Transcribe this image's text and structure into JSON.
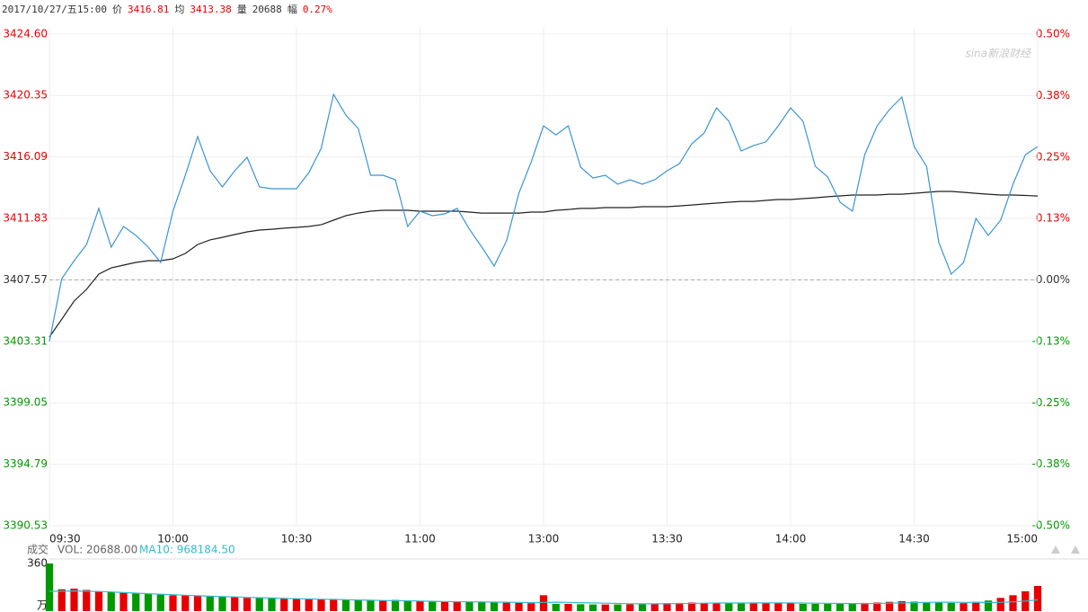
{
  "chart_data": [
    {
      "type": "line",
      "info": {
        "time": "2017/10/27/五15:00",
        "price": "3416.81",
        "avg": "3413.38",
        "vol_label": "量",
        "vol": "20688",
        "chg_label": "幅",
        "chg": "0.27%"
      },
      "watermark": "sina新浪财经",
      "x": [
        0,
        3,
        6,
        9,
        12,
        15,
        18,
        21,
        24,
        27,
        30,
        33,
        36,
        39,
        42,
        45,
        48,
        51,
        54,
        57,
        60,
        63,
        66,
        69,
        72,
        75,
        78,
        81,
        84,
        87,
        90,
        93,
        96,
        99,
        102,
        105,
        108,
        111,
        114,
        117,
        120,
        123,
        126,
        129,
        132,
        135,
        138,
        141,
        144,
        147,
        150,
        153,
        156,
        159,
        162,
        165,
        168,
        171,
        174,
        177,
        180,
        183,
        186,
        189,
        192,
        195,
        198,
        201,
        204,
        207,
        210,
        213,
        216,
        219,
        222,
        225,
        228,
        231,
        234,
        237,
        240
      ],
      "xlim": [
        0,
        240
      ],
      "xticks": [
        {
          "value": 0,
          "label": "09:30"
        },
        {
          "value": 30,
          "label": "10:00"
        },
        {
          "value": 60,
          "label": "10:30"
        },
        {
          "value": 90,
          "label": "11:00"
        },
        {
          "value": 120,
          "label": "13:00"
        },
        {
          "value": 150,
          "label": "13:30"
        },
        {
          "value": 180,
          "label": "14:00"
        },
        {
          "value": 210,
          "label": "14:30"
        },
        {
          "value": 240,
          "label": "15:00"
        }
      ],
      "ylim": [
        3390.53,
        3424.6
      ],
      "yticks": [
        {
          "value": 3424.6,
          "label": "3424.60"
        },
        3420.35,
        3416.09,
        3411.83,
        3407.57,
        3403.31,
        3399.05,
        3394.79,
        3390.53
      ],
      "y2lim": [
        -0.5,
        0.5
      ],
      "y2ticks": [
        {
          "value": 0.5,
          "label": "0.50%"
        },
        {
          "value": 0.375,
          "label": "0.38%"
        },
        {
          "value": 0.25,
          "label": "0.25%"
        },
        {
          "value": 0.125,
          "label": "0.13%"
        },
        {
          "value": 0,
          "label": "0.00%"
        },
        {
          "value": -0.125,
          "label": "-0.13%"
        },
        {
          "value": -0.25,
          "label": "-0.25%"
        },
        {
          "value": -0.375,
          "label": "-0.38%"
        },
        {
          "value": -0.5,
          "label": "-0.50%"
        }
      ],
      "ref_line": 3407.57,
      "grid": true,
      "up_color": "#e60000",
      "down_color": "#009900",
      "flat_color": "#333333",
      "series": [
        {
          "name": "价",
          "color": "#3b95d3",
          "values": [
            3403.3,
            3407.66,
            3408.9,
            3410.02,
            3412.52,
            3409.84,
            3411.27,
            3410.65,
            3409.84,
            3408.78,
            3412.33,
            3414.82,
            3417.5,
            3415.13,
            3414.01,
            3415.13,
            3416.07,
            3414.01,
            3413.89,
            3413.89,
            3413.89,
            3415.01,
            3416.69,
            3420.43,
            3418.99,
            3418.06,
            3414.82,
            3414.82,
            3414.51,
            3411.27,
            3412.33,
            3412.02,
            3412.14,
            3412.52,
            3411.08,
            3409.84,
            3408.53,
            3410.27,
            3413.57,
            3415.75,
            3418.25,
            3417.62,
            3418.25,
            3415.38,
            3414.63,
            3414.82,
            3414.2,
            3414.51,
            3414.2,
            3414.51,
            3415.13,
            3415.63,
            3417.0,
            3417.75,
            3419.49,
            3418.56,
            3416.5,
            3416.88,
            3417.13,
            3418.25,
            3419.49,
            3418.56,
            3415.44,
            3414.7,
            3412.95,
            3412.33,
            3416.25,
            3418.25,
            3419.37,
            3420.24,
            3416.81,
            3415.44,
            3410.15,
            3407.97,
            3408.78,
            3411.83,
            3410.65,
            3411.71,
            3414.2,
            3416.25,
            3416.81
          ]
        },
        {
          "name": "均",
          "color": "#222222",
          "values": [
            3403.61,
            3404.85,
            3406.1,
            3406.91,
            3407.97,
            3408.4,
            3408.59,
            3408.78,
            3408.9,
            3408.9,
            3409.03,
            3409.4,
            3410.02,
            3410.34,
            3410.52,
            3410.71,
            3410.9,
            3411.02,
            3411.08,
            3411.15,
            3411.21,
            3411.27,
            3411.39,
            3411.71,
            3412.02,
            3412.2,
            3412.33,
            3412.39,
            3412.39,
            3412.39,
            3412.33,
            3412.33,
            3412.33,
            3412.33,
            3412.27,
            3412.2,
            3412.2,
            3412.2,
            3412.2,
            3412.27,
            3412.27,
            3412.39,
            3412.45,
            3412.52,
            3412.52,
            3412.58,
            3412.58,
            3412.58,
            3412.64,
            3412.64,
            3412.64,
            3412.7,
            3412.76,
            3412.83,
            3412.89,
            3412.95,
            3413.01,
            3413.01,
            3413.08,
            3413.14,
            3413.14,
            3413.2,
            3413.26,
            3413.33,
            3413.39,
            3413.45,
            3413.45,
            3413.45,
            3413.51,
            3413.51,
            3413.57,
            3413.64,
            3413.7,
            3413.7,
            3413.64,
            3413.57,
            3413.51,
            3413.45,
            3413.45,
            3413.42,
            3413.38
          ]
        }
      ]
    },
    {
      "type": "bar",
      "title": "成交",
      "vol_label": "VOL: 20688.00",
      "ma_label": "MA10: 968184.50",
      "unit": "万",
      "ylim": [
        0,
        360
      ],
      "yticks": [
        360
      ],
      "ma_color": "#33bbcc",
      "values": [
        360,
        165,
        170,
        160,
        150,
        145,
        140,
        135,
        130,
        125,
        120,
        118,
        115,
        110,
        108,
        105,
        100,
        100,
        98,
        95,
        92,
        90,
        90,
        88,
        85,
        85,
        82,
        80,
        85,
        78,
        75,
        72,
        70,
        70,
        68,
        72,
        70,
        65,
        62,
        60,
        120,
        55,
        55,
        52,
        50,
        50,
        50,
        52,
        55,
        58,
        60,
        62,
        65,
        62,
        60,
        60,
        62,
        65,
        62,
        60,
        58,
        55,
        55,
        55,
        58,
        60,
        62,
        65,
        70,
        75,
        72,
        68,
        65,
        62,
        60,
        70,
        80,
        100,
        120,
        150,
        190
      ],
      "ma": [
        150,
        150,
        152,
        150,
        148,
        145,
        140,
        136,
        132,
        128,
        124,
        120,
        116,
        113,
        110,
        107,
        104,
        101,
        99,
        96,
        94,
        92,
        90,
        88,
        86,
        84,
        82,
        80,
        79,
        78,
        76,
        74,
        72,
        71,
        70,
        69,
        68,
        67,
        66,
        64,
        66,
        67,
        66,
        64,
        62,
        60,
        58,
        56,
        55,
        55,
        56,
        57,
        58,
        60,
        61,
        61,
        61,
        61,
        62,
        62,
        62,
        61,
        60,
        59,
        58,
        57,
        57,
        58,
        60,
        62,
        64,
        66,
        67,
        67,
        66,
        65,
        65,
        66,
        70,
        76,
        85
      ]
    }
  ]
}
